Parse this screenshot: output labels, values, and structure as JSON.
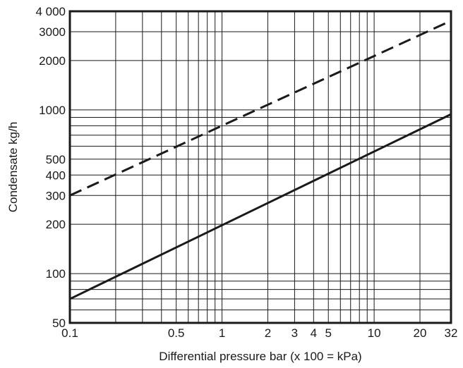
{
  "chart_data": {
    "type": "line",
    "title": "",
    "xlabel": "Differential pressure bar (x 100 = kPa)",
    "ylabel": "Condensate kg/h",
    "x_scale": "log",
    "y_scale": "log",
    "xlim": [
      0.1,
      32
    ],
    "ylim": [
      50,
      4000
    ],
    "grid": true,
    "x_ticks": [
      {
        "value": 0.1,
        "label": "0.1"
      },
      {
        "value": 0.5,
        "label": "0.5"
      },
      {
        "value": 1,
        "label": "1"
      },
      {
        "value": 2,
        "label": "2"
      },
      {
        "value": 3,
        "label": "3"
      },
      {
        "value": 4,
        "label": "4"
      },
      {
        "value": 5,
        "label": "5"
      },
      {
        "value": 10,
        "label": "10"
      },
      {
        "value": 20,
        "label": "20"
      },
      {
        "value": 32,
        "label": "32"
      }
    ],
    "y_ticks": [
      {
        "value": 50,
        "label": "50"
      },
      {
        "value": 100,
        "label": "100"
      },
      {
        "value": 200,
        "label": "200"
      },
      {
        "value": 300,
        "label": "300"
      },
      {
        "value": 400,
        "label": "400"
      },
      {
        "value": 500,
        "label": "500"
      },
      {
        "value": 1000,
        "label": "1000"
      },
      {
        "value": 2000,
        "label": "2000"
      },
      {
        "value": 3000,
        "label": "3000"
      },
      {
        "value": 4000,
        "label": "4 000"
      }
    ],
    "x_gridlines": [
      0.1,
      0.2,
      0.3,
      0.4,
      0.5,
      0.6,
      0.7,
      0.8,
      0.9,
      1,
      2,
      3,
      4,
      5,
      6,
      7,
      8,
      9,
      10,
      20,
      32
    ],
    "y_gridlines": [
      50,
      60,
      70,
      80,
      90,
      100,
      200,
      300,
      400,
      500,
      600,
      700,
      800,
      900,
      1000,
      2000,
      3000,
      4000
    ],
    "series": [
      {
        "style": "dashed",
        "color": "#1a1a1a",
        "x": [
          0.1,
          32
        ],
        "y": [
          300,
          3500
        ]
      },
      {
        "style": "solid",
        "color": "#1a1a1a",
        "x": [
          0.1,
          32
        ],
        "y": [
          70,
          940
        ]
      }
    ]
  }
}
